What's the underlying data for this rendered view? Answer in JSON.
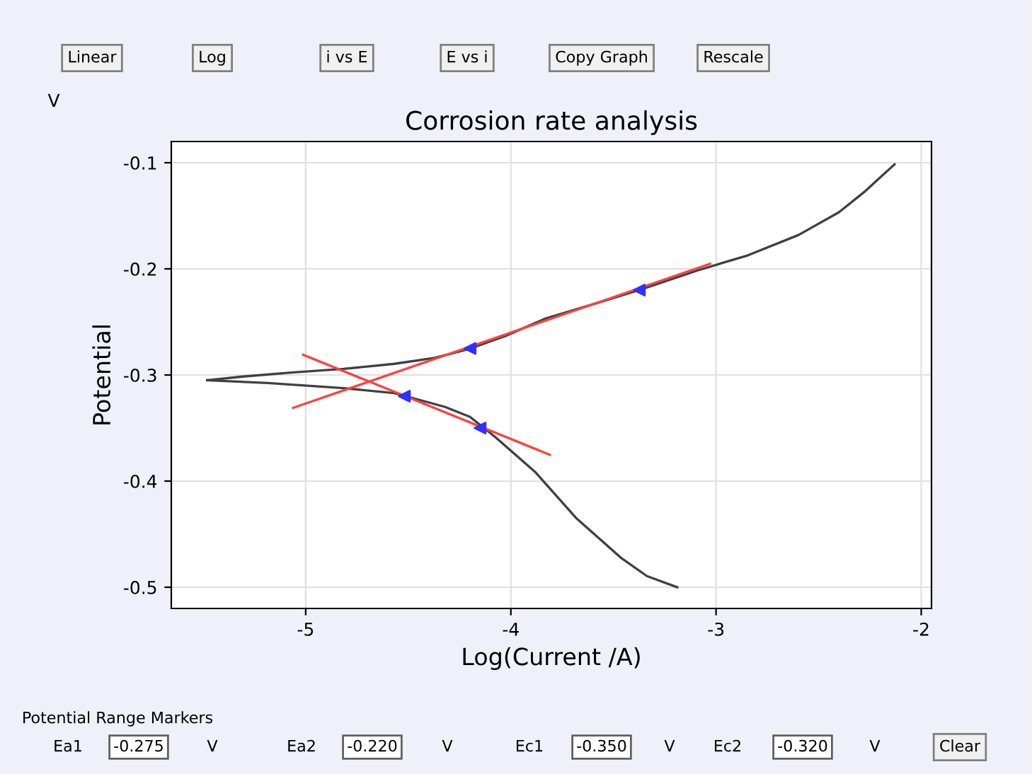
{
  "chart_data": {
    "type": "line",
    "title": "Corrosion rate analysis",
    "xlabel": "Log(Current /A)",
    "ylabel": "Potential",
    "annotations": [
      "V",
      "Linear",
      "Log",
      "i vs E",
      "E vs i",
      "Copy Graph",
      "Rescale",
      "Potential Range Markers",
      "Ea1",
      "-0.275",
      "V",
      "Ea2",
      "-0.220",
      "V",
      "Ec1",
      "-0.350",
      "V",
      "Ec2",
      "-0.320",
      "V",
      "Clear"
    ],
    "xlim": [
      -5.655,
      -1.95
    ],
    "ylim": [
      -0.52,
      -0.08
    ],
    "xticks": [
      -5,
      -4,
      -3,
      -2
    ],
    "yticks": [
      -0.1,
      -0.2,
      -0.3,
      -0.4,
      -0.5
    ],
    "grid": true,
    "marker": "none",
    "line_style": "solid",
    "series": [
      {
        "color": "#404040",
        "x": [
          -5.48,
          -5.307,
          -5.061,
          -4.815,
          -4.568,
          -4.372,
          -4.199,
          -4.027,
          -3.83,
          -3.583,
          -3.361,
          -3.09,
          -2.844,
          -2.598,
          -2.401,
          -2.278,
          -2.13
        ],
        "values": [
          -0.305,
          -0.3015,
          -0.2976,
          -0.2943,
          -0.2895,
          -0.2839,
          -0.2752,
          -0.2633,
          -0.2467,
          -0.2324,
          -0.2191,
          -0.2015,
          -0.1872,
          -0.1681,
          -0.1467,
          -0.1276,
          -0.1015
        ]
      },
      {
        "color": "#404040",
        "x": [
          -5.48,
          -5.184,
          -4.815,
          -4.568,
          -4.322,
          -4.199,
          -4.076,
          -3.879,
          -3.682,
          -3.46,
          -3.337,
          -3.189
        ],
        "values": [
          -0.305,
          -0.3076,
          -0.3124,
          -0.3171,
          -0.33,
          -0.3395,
          -0.3585,
          -0.3919,
          -0.4348,
          -0.4728,
          -0.4895,
          -0.5
        ]
      },
      {
        "color": "#ff4040",
        "x": [
          -5.061,
          -3.029
        ],
        "values": [
          -0.331,
          -0.1952
        ]
      },
      {
        "color": "#ff4040",
        "x": [
          -5.012,
          -3.81
        ],
        "values": [
          -0.281,
          -0.3752
        ]
      },
      {
        "type": "scatter",
        "marker": "triangle",
        "color": "#3030ff",
        "x": [
          -4.199,
          -3.374,
          -4.15,
          -4.519
        ],
        "values": [
          -0.275,
          -0.22,
          -0.35,
          -0.32
        ]
      }
    ]
  }
}
